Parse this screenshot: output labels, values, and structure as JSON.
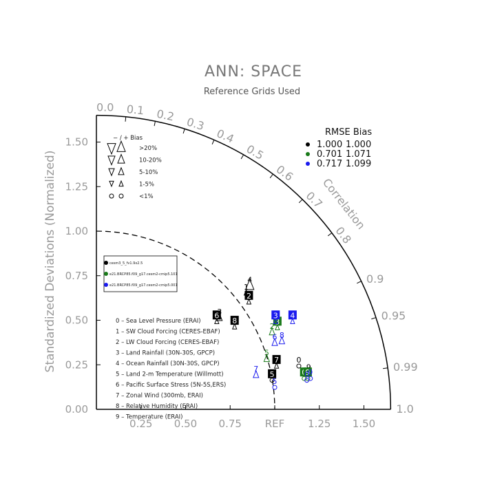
{
  "chart_data": {
    "type": "scatter",
    "title": "ANN: SPACE",
    "subtitle": "Reference Grids Used",
    "ylabel": "Standardized Deviations (Normalized)",
    "corr_label": "Correlation",
    "ref_label": "REF",
    "x_ticks": [
      "0.25",
      "0.50",
      "0.75",
      "REF",
      "1.25",
      "1.50"
    ],
    "x_tick_values": [
      0.25,
      0.5,
      0.75,
      1.0,
      1.25,
      1.5
    ],
    "y_ticks": [
      "0.00",
      "0.25",
      "0.50",
      "0.75",
      "1.00",
      "1.25",
      "1.50"
    ],
    "y_tick_values": [
      0,
      0.25,
      0.5,
      0.75,
      1.0,
      1.25,
      1.5
    ],
    "corr_ticks": [
      "0.0",
      "0.1",
      "0.2",
      "0.3",
      "0.4",
      "0.5",
      "0.6",
      "0.7",
      "0.8",
      "0.9",
      "0.95",
      "0.99",
      "1.0"
    ],
    "corr_tick_values": [
      0.0,
      0.1,
      0.2,
      0.3,
      0.4,
      0.5,
      0.6,
      0.7,
      0.8,
      0.9,
      0.95,
      0.99,
      1.0
    ],
    "std_max": 1.65,
    "bias_legend": {
      "header": "−  /  +     Bias",
      "rows": [
        {
          "label": ">20%",
          "glyph": "large-triangle"
        },
        {
          "label": "10-20%",
          "glyph": "medium-triangle"
        },
        {
          "label": "5-10%",
          "glyph": "small-triangle"
        },
        {
          "label": "1-5%",
          "glyph": "tiny-triangle"
        },
        {
          "label": "<1%",
          "glyph": "circle"
        }
      ]
    },
    "rmse_table": {
      "header": "RMSE  Bias",
      "rows": [
        {
          "rmse": "1.000",
          "bias": "1.000",
          "color": "#000000"
        },
        {
          "rmse": "0.701",
          "bias": "1.071",
          "color": "#1a7a1a"
        },
        {
          "rmse": "0.717",
          "bias": "1.099",
          "color": "#1a1aee"
        }
      ]
    },
    "cases": [
      {
        "name": "cesm3_5_fv1.9x2.5",
        "color": "#000000"
      },
      {
        "name": "e21.BRCP85.f09_g17.cesm2-cmip5.101",
        "color": "#1a7a1a"
      },
      {
        "name": "e21.BRCP85.f09_g17.cesm2-cmip5.001",
        "color": "#1a1aee"
      }
    ],
    "variables": [
      "0 – Sea Level Pressure (ERAI)",
      "1 – SW Cloud Forcing (CERES-EBAF)",
      "2 – LW Cloud Forcing (CERES-EBAF)",
      "3 – Land Rainfall (30N-30S, GPCP)",
      "4 – Ocean Rainfall (30N-30S, GPCP)",
      "5 – Land 2-m Temperature (Willmott)",
      "6 – Pacific Surface Stress (5N-5S,ERS)",
      "7 – Zonal Wind (300mb, ERAI)",
      "8 – Relative Humidity (ERAI)",
      "9 – Temperature (ERAI)"
    ],
    "series": [
      {
        "name": "cesm3_5_fv1.9x2.5",
        "color": "#000000",
        "points": [
          {
            "id": "0",
            "x": 1.135,
            "y": 0.27,
            "marker": "circle"
          },
          {
            "id": "1",
            "x": 0.84,
            "y": 0.68,
            "marker": "tiny-triangle"
          },
          {
            "id": "2",
            "x": 0.855,
            "y": 0.63,
            "marker": "tiny-triangle",
            "boxed": true
          },
          {
            "id": "3",
            "x": 0.69,
            "y": 0.54,
            "marker": "small-triangle"
          },
          {
            "id": "4",
            "x": 0.86,
            "y": 0.72,
            "marker": "large-triangle"
          },
          {
            "id": "5",
            "x": 0.985,
            "y": 0.19,
            "marker": "circle",
            "boxed": true
          },
          {
            "id": "6",
            "x": 0.675,
            "y": 0.52,
            "marker": "tiny-triangle",
            "boxed": true
          },
          {
            "id": "7",
            "x": 1.01,
            "y": 0.27,
            "marker": "tiny-triangle",
            "boxed": true
          },
          {
            "id": "8",
            "x": 0.775,
            "y": 0.49,
            "marker": "tiny-triangle",
            "boxed": true
          },
          {
            "id": "9",
            "x": 1.19,
            "y": 0.23,
            "marker": "circle"
          }
        ]
      },
      {
        "name": "e21.BRCP85.f09_g17.cesm2-cmip5.101",
        "color": "#1a7a1a",
        "points": [
          {
            "id": "0",
            "x": 1.165,
            "y": 0.2,
            "marker": "circle",
            "boxed": true
          },
          {
            "id": "2",
            "x": 0.985,
            "y": 0.46,
            "marker": "small-triangle"
          },
          {
            "id": "3",
            "x": 1.015,
            "y": 0.485,
            "marker": "tiny-triangle",
            "boxed": true
          },
          {
            "id": "5",
            "x": 0.955,
            "y": 0.31,
            "marker": "small-triangle"
          },
          {
            "id": "9",
            "x": 1.185,
            "y": 0.2,
            "marker": "circle",
            "boxed": true
          }
        ]
      },
      {
        "name": "e21.BRCP85.f09_g17.cesm2-cmip5.001",
        "color": "#1a1aee",
        "points": [
          {
            "id": "0",
            "x": 1.18,
            "y": 0.19,
            "marker": "circle"
          },
          {
            "id": "3",
            "x": 1.005,
            "y": 0.52,
            "marker": "tiny-triangle",
            "boxed": true
          },
          {
            "id": "4",
            "x": 1.1,
            "y": 0.52,
            "marker": "tiny-triangle",
            "boxed": true
          },
          {
            "id": "5",
            "x": 1.0,
            "y": 0.15,
            "marker": "circle"
          },
          {
            "id": "6",
            "x": 1.0,
            "y": 0.4,
            "marker": "small-triangle"
          },
          {
            "id": "7",
            "x": 0.895,
            "y": 0.22,
            "marker": "small-triangle"
          },
          {
            "id": "8",
            "x": 1.04,
            "y": 0.41,
            "marker": "small-triangle"
          },
          {
            "id": "9",
            "x": 1.2,
            "y": 0.2,
            "marker": "circle"
          }
        ]
      }
    ],
    "grid": false,
    "legend_position": "left"
  }
}
